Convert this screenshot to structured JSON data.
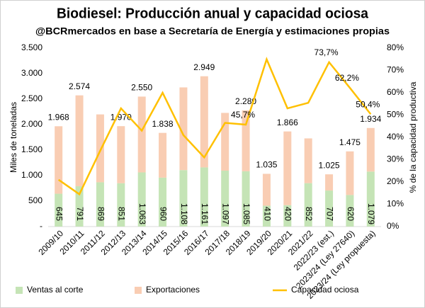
{
  "chart_data": {
    "type": "bar",
    "title": "Biodiesel: Producción anual y capacidad ociosa",
    "subtitle": "@BCRmercados en base a Secretaría de Energía y estimaciones propias",
    "y_label": "Miles de toneladas",
    "y2_label": "% de la capacidad productiva",
    "categories": [
      "2009/10",
      "2010/11",
      "2011/12",
      "2012/13",
      "2013/14",
      "2014/15",
      "2015/16",
      "2016/17",
      "2017/18",
      "2018/19",
      "2019/20",
      "2020/21",
      "2021/22",
      "2022/23 (est.)",
      "2023/24 (Ley 27640)",
      "2023/24 (Ley propuesta)"
    ],
    "series": [
      {
        "name": "Ventas al corte",
        "color": "#c5e4b6",
        "values": [
          645,
          791,
          869,
          851,
          1063,
          960,
          1108,
          1161,
          1097,
          1085,
          410,
          420,
          852,
          707,
          620,
          1079
        ],
        "value_labels": [
          "645",
          "791",
          "869",
          "851",
          "1.063",
          "960",
          "1.108",
          "1.161",
          "1.097",
          "1.085",
          "410",
          "420",
          "852",
          "707",
          "620",
          "1.079"
        ]
      },
      {
        "name": "Exportaciones",
        "color": "#f9cdb3",
        "values": [
          1323,
          1783,
          1331,
          1119,
          1487,
          878,
          1622,
          1788,
          1133,
          1195,
          625,
          1446,
          878,
          318,
          855,
          855
        ]
      },
      {
        "name": "Capacidad ociosa",
        "color": "#ffc000",
        "type": "line",
        "axis": "y2",
        "values": [
          21,
          14.5,
          34,
          53,
          43,
          60,
          41,
          31,
          46.5,
          45.7,
          75,
          53,
          55.5,
          73.7,
          62.2,
          50.4
        ],
        "value_labels": [
          null,
          null,
          null,
          null,
          null,
          null,
          null,
          null,
          null,
          "45,7%",
          null,
          null,
          null,
          "73,7%",
          "62,2%",
          "50,4%"
        ]
      }
    ],
    "totals": [
      1968,
      2574,
      null,
      1970,
      2550,
      1838,
      null,
      2949,
      null,
      2280,
      1035,
      1866,
      null,
      1025,
      1475,
      1934
    ],
    "total_labels": [
      "1.968",
      "2.574",
      null,
      "1.970",
      "2.550",
      "1.838",
      null,
      "2.949",
      null,
      "2.280",
      "1.035",
      "1.866",
      null,
      "1.025",
      "1.475",
      "1.934"
    ],
    "ylim": [
      0,
      3500
    ],
    "yticks": [
      {
        "value": 0,
        "label": "-"
      },
      500,
      {
        "value": 1000,
        "label": "1.000"
      },
      {
        "value": 1500,
        "label": "1.500"
      },
      {
        "value": 2000,
        "label": "2.000"
      },
      {
        "value": 2500,
        "label": "2.500"
      },
      {
        "value": 3000,
        "label": "3.000"
      },
      {
        "value": 3500,
        "label": "3.500"
      }
    ],
    "y2lim": [
      0,
      80
    ],
    "y2ticks": [
      {
        "value": 0,
        "label": "0%"
      },
      {
        "value": 10,
        "label": "10%"
      },
      {
        "value": 20,
        "label": "20%"
      },
      {
        "value": 30,
        "label": "30%"
      },
      {
        "value": 40,
        "label": "40%"
      },
      {
        "value": 50,
        "label": "50%"
      },
      {
        "value": 60,
        "label": "60%"
      },
      {
        "value": 70,
        "label": "70%"
      },
      {
        "value": 80,
        "label": "80%"
      }
    ],
    "grid": false,
    "legend": "bottom"
  }
}
